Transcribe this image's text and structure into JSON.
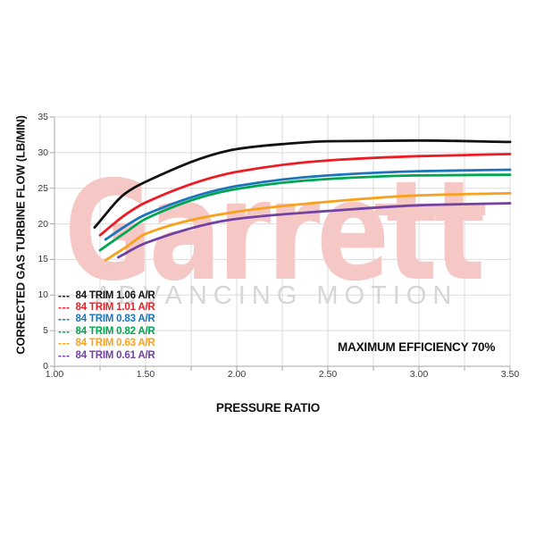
{
  "watermark": {
    "brand": "Garrett",
    "tagline": "ADVANCING MOTION"
  },
  "colors": {
    "grid": "#dbdbdb",
    "axis": "#a6a6a6",
    "tick_label": "#3a3a3a",
    "watermark_pink": "#f5c8c6",
    "tagline_gray": "#d6d6d6"
  },
  "chart_data": {
    "type": "line",
    "title": "",
    "xlabel": "PRESSURE RATIO",
    "ylabel": "CORRECTED GAS TURBINE FLOW (LB/MIN)",
    "annotation": "MAXIMUM EFFICIENCY 70%",
    "xlim": [
      1.0,
      3.5
    ],
    "ylim": [
      0,
      35
    ],
    "x_minor_step": 0.25,
    "grid": true,
    "legend_position": "lower-left",
    "legend_dash": "---",
    "x_ticks": [
      1.0,
      1.5,
      2.0,
      2.5,
      3.0,
      3.5
    ],
    "x_tick_labels": [
      "1.00",
      "1.50",
      "2.00",
      "2.50",
      "3.00",
      "3.50"
    ],
    "y_ticks": [
      0,
      5,
      10,
      15,
      20,
      25,
      30,
      35
    ],
    "y_tick_labels": [
      "0",
      "5",
      "10",
      "15",
      "20",
      "25",
      "30",
      "35"
    ],
    "series": [
      {
        "name": "84 TRIM 1.06 A/R",
        "color": "#121212",
        "points": [
          [
            1.22,
            19.5
          ],
          [
            1.39,
            24.3
          ],
          [
            1.5,
            25.9
          ],
          [
            2.0,
            30.5
          ],
          [
            2.25,
            31.2
          ],
          [
            2.5,
            31.6
          ],
          [
            3.0,
            31.7
          ],
          [
            3.5,
            31.5
          ]
        ]
      },
      {
        "name": "84 TRIM 1.01 A/R",
        "color": "#ec1c24",
        "points": [
          [
            1.25,
            18.4
          ],
          [
            1.39,
            21.3
          ],
          [
            1.5,
            23.0
          ],
          [
            2.0,
            27.3
          ],
          [
            2.5,
            28.9
          ],
          [
            3.0,
            29.5
          ],
          [
            3.5,
            29.8
          ]
        ]
      },
      {
        "name": "84 TRIM 0.83 A/R",
        "color": "#1b75bc",
        "points": [
          [
            1.28,
            17.8
          ],
          [
            1.39,
            19.7
          ],
          [
            1.5,
            21.3
          ],
          [
            2.0,
            25.3
          ],
          [
            2.5,
            26.8
          ],
          [
            3.0,
            27.4
          ],
          [
            3.5,
            27.6
          ]
        ]
      },
      {
        "name": "84 TRIM 0.82 A/R",
        "color": "#00a651",
        "points": [
          [
            1.25,
            16.3
          ],
          [
            1.39,
            18.8
          ],
          [
            1.5,
            20.7
          ],
          [
            2.0,
            24.9
          ],
          [
            2.5,
            26.3
          ],
          [
            3.0,
            26.8
          ],
          [
            3.5,
            26.9
          ]
        ]
      },
      {
        "name": "84 TRIM 0.63 A/R",
        "color": "#f9a11b",
        "points": [
          [
            1.28,
            14.9
          ],
          [
            1.39,
            16.7
          ],
          [
            1.5,
            18.6
          ],
          [
            2.0,
            21.7
          ],
          [
            2.5,
            23.1
          ],
          [
            3.0,
            24.0
          ],
          [
            3.5,
            24.3
          ]
        ]
      },
      {
        "name": "84 TRIM 0.61 A/R",
        "color": "#7142a1",
        "points": [
          [
            1.35,
            15.3
          ],
          [
            1.5,
            17.3
          ],
          [
            2.0,
            20.7
          ],
          [
            2.5,
            21.8
          ],
          [
            3.0,
            22.6
          ],
          [
            3.5,
            22.9
          ]
        ]
      }
    ]
  }
}
